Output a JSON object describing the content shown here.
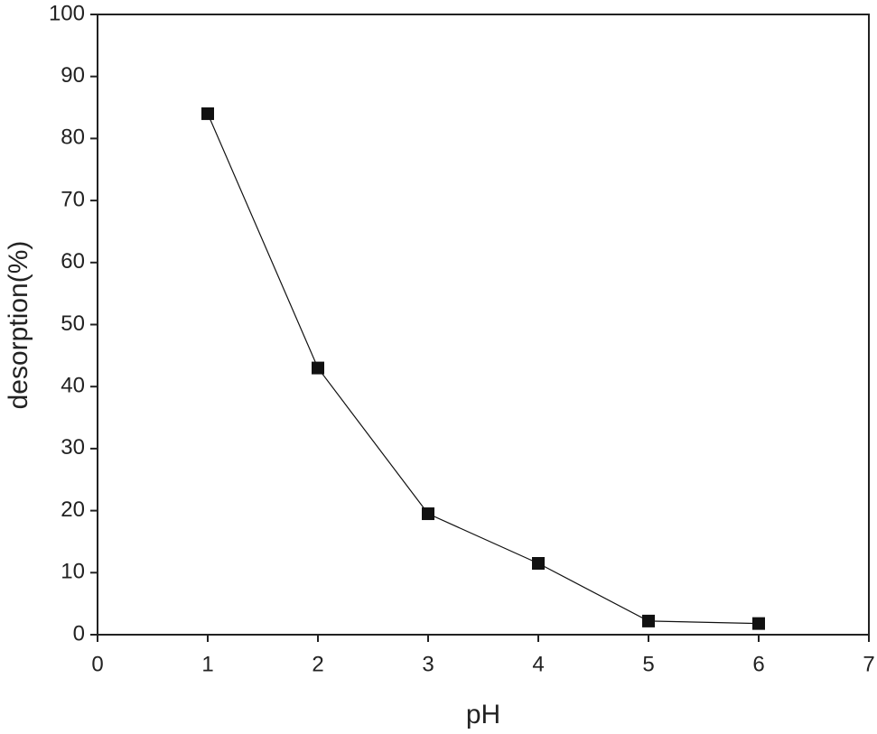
{
  "chart_data": {
    "type": "line",
    "x_label": "pH",
    "y_label": "desorption(%)",
    "x": [
      1,
      2,
      3,
      4,
      5,
      6
    ],
    "series": [
      {
        "color": "#111111",
        "values": [
          84,
          43,
          19.5,
          11.5,
          2.2,
          1.8
        ]
      }
    ],
    "xlim": [
      0,
      7
    ],
    "xticks": [
      0,
      1,
      2,
      3,
      4,
      5,
      6,
      7
    ],
    "ylim": [
      0,
      100
    ],
    "yticks": [
      0,
      10,
      20,
      30,
      40,
      50,
      60,
      70,
      80,
      90,
      100
    ],
    "grid": false,
    "marker": "square"
  }
}
